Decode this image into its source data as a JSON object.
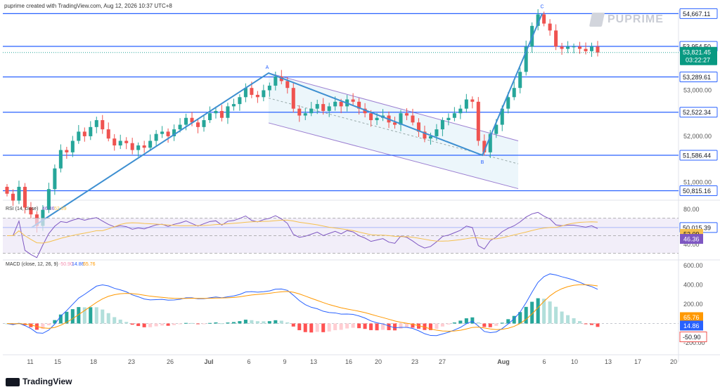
{
  "header": {
    "attribution": "puprime created with TradingView.com, Aug 12, 2026 10:37 UTC+8"
  },
  "brand": {
    "name": "PUPRIME"
  },
  "footer": {
    "brand": "TradingView"
  },
  "colors": {
    "up": "#26a69a",
    "down": "#ef5350",
    "level": "#2962ff",
    "trend": "#3d8fd1",
    "channel": "#9c7fd1",
    "rsi": "#7e57c2",
    "rsi_ma": "#f5c04e",
    "macd": "#2962ff",
    "signal": "#ff9800"
  },
  "chart_data": [
    {
      "type": "candlestick",
      "axis_currency": "USD",
      "x_ticks": [
        "11",
        "15",
        "18",
        "23",
        "26",
        "Jul",
        "6",
        "9",
        "13",
        "16",
        "20",
        "23",
        "27",
        "Aug",
        "6",
        "10",
        "13",
        "17",
        "20"
      ],
      "y_ticks": [
        "51,000.00",
        "52,000.00",
        "53,000.00"
      ],
      "levels": [
        "54,667.11",
        "53,954.50",
        "53,289.61",
        "52,522.34",
        "51,586.44",
        "50,815.16",
        "50,015.39"
      ],
      "last_price": {
        "price": "53,821.45",
        "countdown": "03:22:27"
      },
      "wave_labels": [
        "A",
        "B",
        "C"
      ],
      "series_closes": [
        50750,
        50600,
        50900,
        50450,
        50300,
        50050,
        50400,
        50850,
        51300,
        51700,
        51650,
        51900,
        52100,
        52000,
        52200,
        52350,
        52150,
        51950,
        51800,
        51900,
        51850,
        51700,
        51800,
        51750,
        51900,
        52050,
        52100,
        52000,
        52150,
        52250,
        52400,
        52300,
        52200,
        52350,
        52500,
        52550,
        52400,
        52650,
        52700,
        52850,
        53050,
        52900,
        52850,
        53000,
        53100,
        53300,
        53200,
        53050,
        52600,
        52450,
        52500,
        52600,
        52700,
        52550,
        52650,
        52750,
        52650,
        52800,
        52750,
        52600,
        52500,
        52350,
        52400,
        52450,
        52300,
        52250,
        52500,
        52450,
        52300,
        52100,
        51950,
        52000,
        52150,
        52350,
        52400,
        52500,
        52600,
        52800,
        52750,
        51900,
        51650,
        52050,
        52250,
        52600,
        52850,
        53050,
        53400,
        53950,
        54400,
        54650,
        54450,
        54300,
        53950,
        53900,
        53950,
        53950,
        53900,
        53850,
        53950,
        53821
      ]
    },
    {
      "type": "line",
      "title": "RSI (14, close)",
      "y_ticks": [
        "80.00",
        "40.00"
      ],
      "series": [
        {
          "name": "RSI",
          "last": "46.36"
        },
        {
          "name": "MA",
          "last": "52.09"
        }
      ]
    },
    {
      "type": "bar",
      "title": "MACD (close, 12, 26, 9)",
      "y_ticks": [
        "600.00",
        "400.00",
        "200.00",
        "-200.00"
      ],
      "series": [
        {
          "name": "Histogram",
          "last": "-50.90"
        },
        {
          "name": "MACD",
          "last": "14.86"
        },
        {
          "name": "Signal",
          "last": "65.76"
        }
      ]
    }
  ]
}
